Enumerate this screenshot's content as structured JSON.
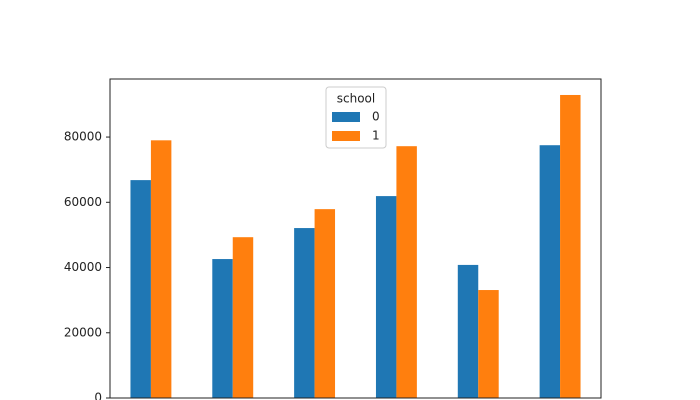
{
  "chart_data": {
    "type": "bar",
    "categories": [
      null,
      null,
      null,
      null,
      null,
      null
    ],
    "series": [
      {
        "name": "0",
        "color": "#1f77b4",
        "values": [
          66800,
          42600,
          52100,
          61900,
          40800,
          77500
        ]
      },
      {
        "name": "1",
        "color": "#ff7f0e",
        "values": [
          79000,
          49300,
          57900,
          77200,
          33100,
          92900
        ]
      }
    ],
    "legend_title": "school",
    "legend": "upper center",
    "ylim": [
      0,
      97800
    ],
    "yticks": [
      0,
      20000,
      40000,
      60000,
      80000
    ],
    "grid": false
  }
}
